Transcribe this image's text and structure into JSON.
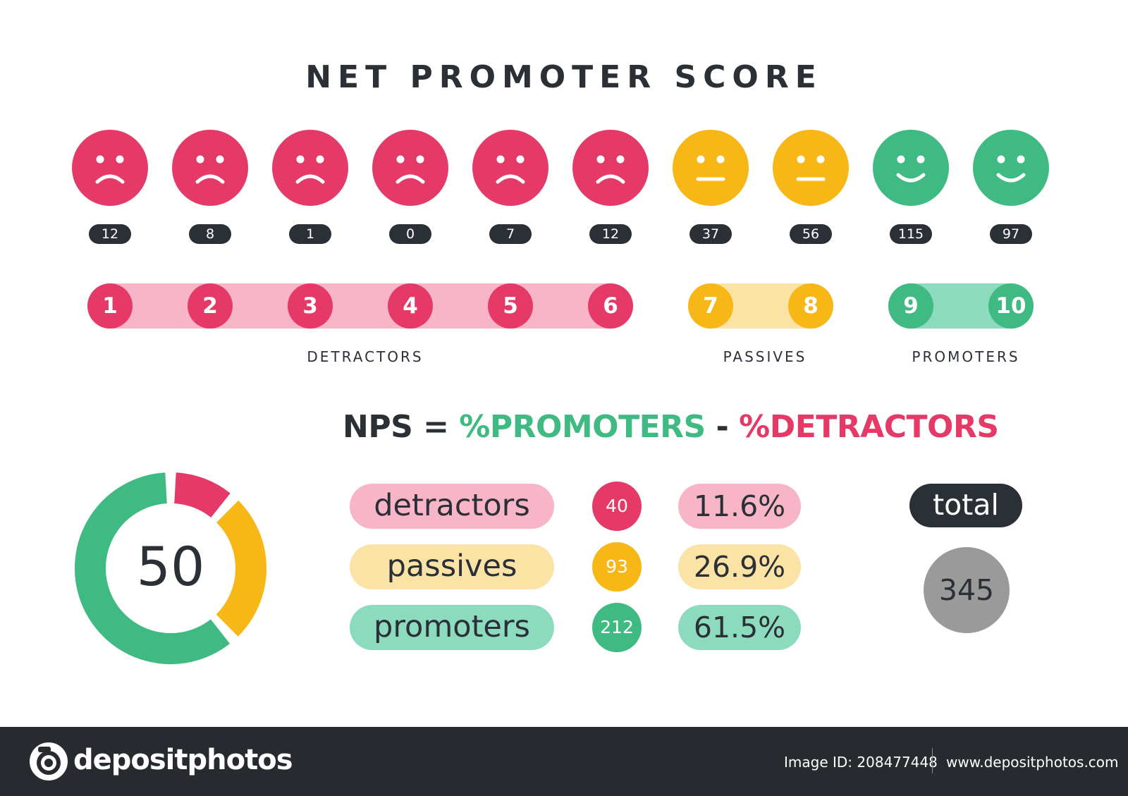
{
  "title": "NET PROMOTER SCORE",
  "colors": {
    "detractor": "#e53a67",
    "detractor_light": "#f9b5c8",
    "passive": "#f7b716",
    "passive_light": "#fbe3a6",
    "promoter": "#3fba82",
    "promoter_light": "#8ddbbe",
    "dark": "#2b2f36",
    "total_gray": "#9a9a9a"
  },
  "ratings": [
    {
      "score": "1",
      "count": "12",
      "mood": "sad"
    },
    {
      "score": "2",
      "count": "8",
      "mood": "sad"
    },
    {
      "score": "3",
      "count": "1",
      "mood": "sad"
    },
    {
      "score": "4",
      "count": "0",
      "mood": "sad"
    },
    {
      "score": "5",
      "count": "7",
      "mood": "sad"
    },
    {
      "score": "6",
      "count": "12",
      "mood": "sad"
    },
    {
      "score": "7",
      "count": "37",
      "mood": "neutral"
    },
    {
      "score": "8",
      "count": "56",
      "mood": "neutral"
    },
    {
      "score": "9",
      "count": "115",
      "mood": "happy"
    },
    {
      "score": "10",
      "count": "97",
      "mood": "happy"
    }
  ],
  "groups": {
    "detractors": "DETRACTORS",
    "passives": "PASSIVES",
    "promoters": "PROMOTERS"
  },
  "formula": {
    "lhs": "NPS",
    "eq": " = ",
    "promoters": "%PROMOTERS",
    "minus": " - ",
    "detractors": "%DETRACTORS"
  },
  "gauge": {
    "value": "50",
    "segments": [
      {
        "group": "detractors",
        "fraction": 0.116
      },
      {
        "group": "passives",
        "fraction": 0.269
      },
      {
        "group": "promoters",
        "fraction": 0.615
      }
    ]
  },
  "breakdown": [
    {
      "label": "detractors",
      "count": "40",
      "percent": "11.6%"
    },
    {
      "label": "passives",
      "count": "93",
      "percent": "26.9%"
    },
    {
      "label": "promoters",
      "count": "212",
      "percent": "61.5%"
    }
  ],
  "total": {
    "label": "total",
    "value": "345"
  },
  "footer": {
    "brand": "depositphotos",
    "image_id": "Image ID: 208477448",
    "url": "www.depositphotos.com"
  }
}
